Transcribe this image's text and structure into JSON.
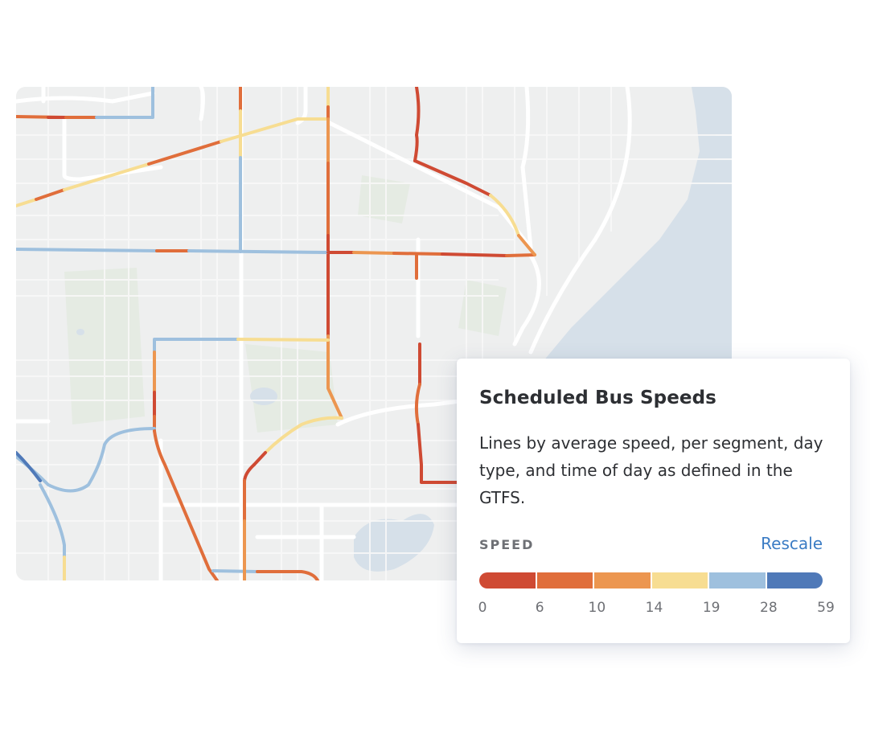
{
  "legend": {
    "title": "Scheduled Bus Speeds",
    "description": "Lines by average speed, per segment, day type, and time of day as defined in the GTFS.",
    "speed_label": "SPEED",
    "rescale_label": "Rescale",
    "bins": [
      {
        "color": "#cf4a33"
      },
      {
        "color": "#e06e3b"
      },
      {
        "color": "#ec9650"
      },
      {
        "color": "#f7dd92"
      },
      {
        "color": "#9ec0de"
      },
      {
        "color": "#4f79b8"
      }
    ],
    "ticks": [
      "0",
      "6",
      "10",
      "14",
      "19",
      "28",
      "59"
    ]
  },
  "map": {
    "land_color": "#eeefef",
    "water_color": "#d7e1ea",
    "park_color": "#e4ebe2",
    "road_color": "#ffffff"
  }
}
